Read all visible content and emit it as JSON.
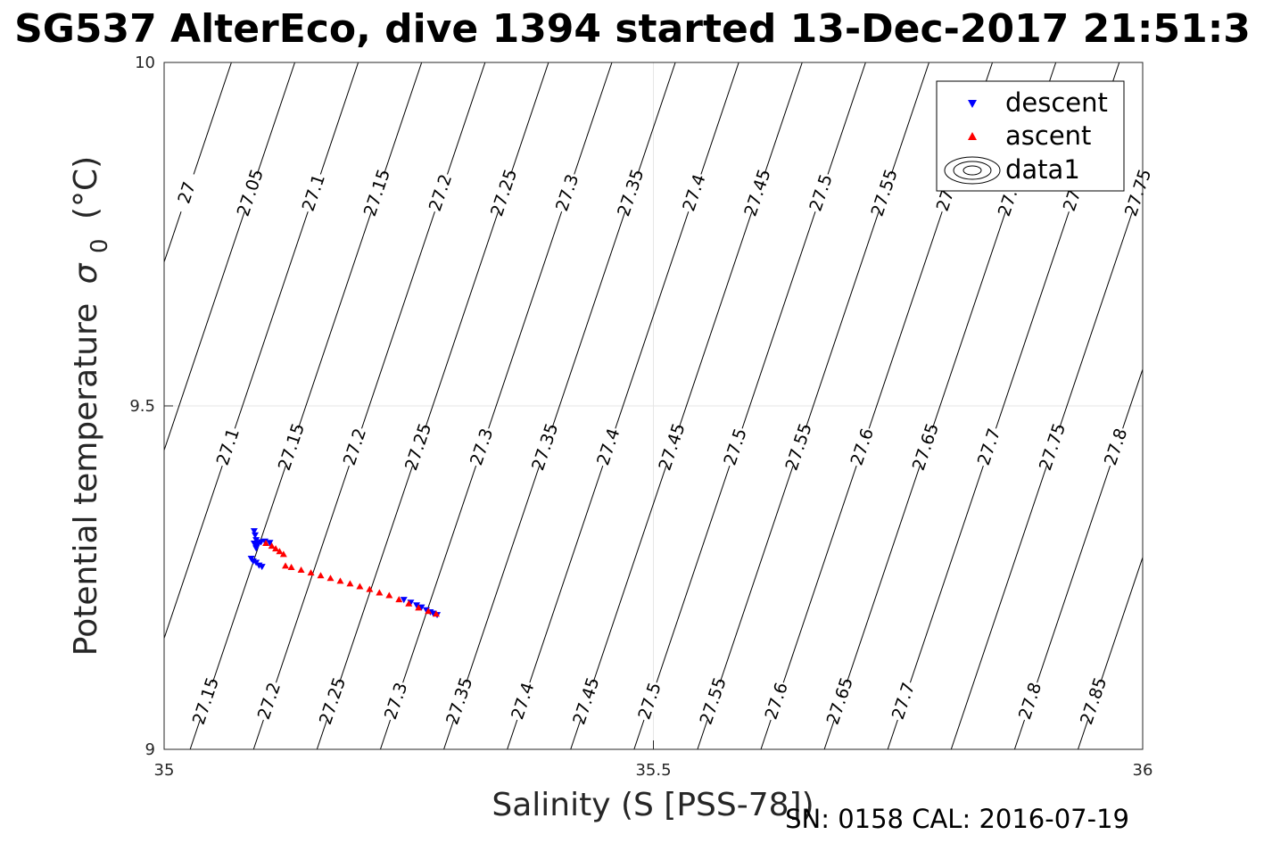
{
  "chart_data": {
    "type": "scatter",
    "title": "SG537 AlterEco, dive 1394 started 13-Dec-2017 21:51:3",
    "xlabel": "Salinity (S [PSS-78])",
    "ylabel": "Potential temperature",
    "ylabel_symbol": "σ",
    "ylabel_subscript": "0",
    "ylabel_unit": "(°C)",
    "xlim": [
      35,
      36
    ],
    "ylim": [
      9,
      10
    ],
    "x_ticks": [
      35,
      35.5,
      36
    ],
    "y_ticks": [
      9,
      9.5,
      10
    ],
    "x_tick_labels": [
      "35",
      "35.5",
      "36"
    ],
    "y_tick_labels": [
      "9",
      "9.5",
      "10"
    ],
    "grid": true,
    "legend_position": "top-right",
    "legend": [
      "descent",
      "ascent",
      "data1"
    ],
    "series": [
      {
        "name": "descent",
        "color": "#0000ff",
        "marker": "triangle-down",
        "x": [
          35.092,
          35.093,
          35.094,
          35.092,
          35.095,
          35.094,
          35.096,
          35.099,
          35.103,
          35.108,
          35.089,
          35.091,
          35.094,
          35.097,
          35.1,
          35.245,
          35.252,
          35.258,
          35.263,
          35.268,
          35.272,
          35.275,
          35.279
        ],
        "y": [
          9.318,
          9.312,
          9.305,
          9.3,
          9.296,
          9.293,
          9.3,
          9.302,
          9.303,
          9.301,
          9.278,
          9.274,
          9.272,
          9.268,
          9.266,
          9.218,
          9.214,
          9.21,
          9.207,
          9.203,
          9.2,
          9.198,
          9.196
        ]
      },
      {
        "name": "ascent",
        "color": "#ff0000",
        "marker": "triangle-up",
        "x": [
          35.104,
          35.11,
          35.114,
          35.118,
          35.122,
          35.124,
          35.13,
          35.14,
          35.15,
          35.16,
          35.17,
          35.18,
          35.19,
          35.2,
          35.21,
          35.22,
          35.23,
          35.24,
          35.25,
          35.26,
          35.27,
          35.278
        ],
        "y": [
          9.3,
          9.296,
          9.292,
          9.288,
          9.284,
          9.267,
          9.265,
          9.261,
          9.257,
          9.253,
          9.249,
          9.245,
          9.241,
          9.237,
          9.233,
          9.228,
          9.224,
          9.218,
          9.212,
          9.206,
          9.201,
          9.197
        ]
      }
    ],
    "contour_lines": [
      27.0,
      27.05,
      27.1,
      27.15,
      27.2,
      27.25,
      27.3,
      27.35,
      27.4,
      27.45,
      27.5,
      27.55,
      27.6,
      27.65,
      27.7,
      27.75,
      27.8,
      27.85
    ],
    "contour_labels_top": [
      "27",
      "27.05",
      "27.1",
      "27.15",
      "27.2",
      "27.25",
      "27.3",
      "27.35",
      "27.4",
      "27.45",
      "27.5",
      "27.55",
      "27.6",
      "27.65",
      "27.7",
      "27.75"
    ],
    "contour_labels_mid": [
      "27.05",
      "27.1",
      "27.15",
      "27.2",
      "27.25",
      "27.3",
      "27.35",
      "27.4",
      "27.45",
      "27.5",
      "27.55",
      "27.6",
      "27.65",
      "27.7",
      "27.75",
      "27.8"
    ],
    "contour_labels_bottom": [
      "27.15",
      "27.2",
      "27.25",
      "27.3",
      "27.35",
      "27.4",
      "27.45",
      "27.5",
      "27.55",
      "27.6",
      "27.65",
      "27.7",
      "27.8",
      "27.85"
    ]
  },
  "footer": {
    "sn_cal": "SN: 0158  CAL: 2016-07-19"
  },
  "colors": {
    "descent": "#0000ff",
    "ascent": "#ff0000",
    "contour": "#000000",
    "grid": "#e6e6e6",
    "axis": "#262626"
  }
}
